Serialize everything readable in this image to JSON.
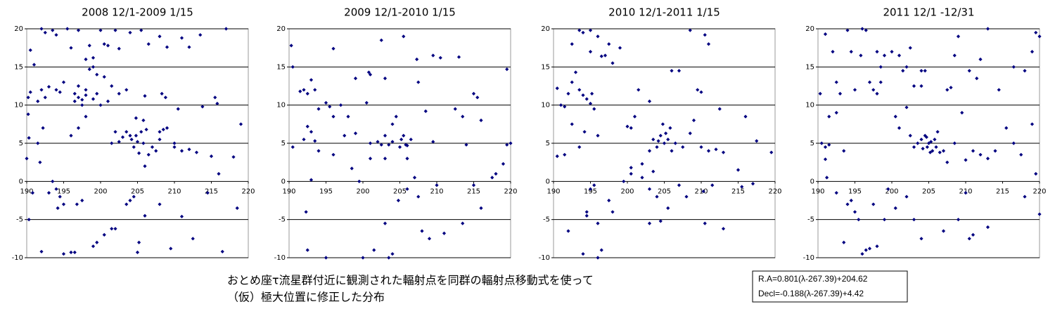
{
  "chart_data": [
    {
      "type": "scatter",
      "title": "2008 12/1-2009 1/15",
      "color": "#000080",
      "xlim": [
        190,
        220
      ],
      "ylim": [
        -10,
        20
      ],
      "xticks": [
        190,
        195,
        200,
        205,
        210,
        215,
        220
      ],
      "yticks": [
        -10,
        -5,
        0,
        5,
        10,
        15,
        20
      ],
      "grid": true,
      "x": [
        190.5,
        191,
        192,
        192.5,
        193.5,
        194,
        195.5,
        196,
        197,
        198,
        198.5,
        199,
        200,
        200.5,
        201,
        202,
        202.5,
        204,
        205.5,
        206.5,
        208,
        209,
        211,
        212,
        213.5,
        217,
        190.2,
        190.5,
        191.5,
        192,
        192.5,
        193,
        194,
        194.5,
        195,
        196.5,
        197,
        197.5,
        198,
        198.5,
        199,
        199.5,
        197,
        198,
        197.5,
        196.5,
        199,
        200,
        201,
        200.5,
        201.5,
        202.5,
        199.5,
        203.5,
        190.2,
        190.3,
        191.5,
        192.2,
        190,
        191.8,
        193.5,
        194,
        194.5,
        196,
        197,
        198,
        195,
        197.5,
        194.2,
        203.5,
        204,
        204.2,
        204.5,
        204.8,
        205,
        205.2,
        205.5,
        205.8,
        206,
        206.2,
        203,
        202.5,
        201.5,
        202,
        206.5,
        207,
        207.5,
        208,
        208.5,
        209,
        208,
        210,
        211,
        212,
        213,
        210.5,
        208.3,
        208.8,
        206,
        205.8,
        204.8,
        210,
        213.8,
        215.5,
        215.8,
        216,
        219,
        218,
        215,
        190.3,
        192,
        195,
        196,
        196.5,
        199,
        199.5,
        200.5,
        201.5,
        202,
        204,
        203.5,
        204.5,
        205,
        205.2,
        206,
        209.5,
        211,
        212.5,
        214.5,
        216.5,
        218.5,
        190.8,
        193,
        196.8,
        208
      ],
      "values": [
        17.2,
        15.3,
        20,
        19.5,
        19.8,
        19.2,
        20,
        17.5,
        19.8,
        16,
        17.8,
        16.2,
        19.8,
        18,
        17.8,
        19.8,
        17.4,
        19.5,
        19.8,
        18,
        19,
        17.6,
        18.8,
        17.6,
        19.2,
        20,
        11,
        11.7,
        10.5,
        12,
        11,
        12.4,
        12,
        11.7,
        13,
        11.5,
        12.5,
        10.7,
        12,
        14.7,
        15,
        11.5,
        11,
        11.3,
        10,
        10.5,
        10.8,
        10,
        10.5,
        13.7,
        12.5,
        11.5,
        14,
        12,
        8.8,
        5.7,
        5,
        7,
        3,
        2.5,
        0,
        -1,
        -2,
        6,
        7,
        8.5,
        -3,
        -2.5,
        -3.5,
        6.5,
        6,
        5.5,
        4.5,
        6,
        5.2,
        3.7,
        6.5,
        5,
        2,
        6.8,
        5.8,
        5.2,
        5,
        6.5,
        3.5,
        4.5,
        4,
        5.5,
        6.8,
        7,
        6.5,
        4.5,
        4,
        4.2,
        3.8,
        9.5,
        11.5,
        11,
        11.2,
        8,
        8.3,
        5,
        9.8,
        11,
        10.2,
        1,
        7.5,
        3.2,
        3.3,
        -5,
        -9.2,
        -9.5,
        -9.3,
        -9.3,
        -8.5,
        -8,
        -7,
        -6.2,
        -6.2,
        -2.5,
        -3,
        -2,
        -9.3,
        -8,
        -4.5,
        -8.8,
        -4.6,
        -7.5,
        -1.5,
        -9.2,
        -3.5,
        -1.5,
        -1.5,
        -3,
        -3
      ]
    },
    {
      "type": "scatter",
      "title": "2009 12/1-2010 1/15",
      "color": "#000080",
      "xlim": [
        190,
        220
      ],
      "ylim": [
        -10,
        20
      ],
      "xticks": [
        190,
        195,
        200,
        205,
        210,
        215,
        220
      ],
      "yticks": [
        -10,
        -5,
        0,
        5,
        10,
        15,
        20
      ],
      "grid": true,
      "x": [
        190.3,
        190.5,
        191.5,
        192,
        192.5,
        193,
        193.5,
        194,
        195,
        195.5,
        196,
        196,
        197,
        197.5,
        198,
        199,
        198.5,
        192.5,
        193,
        193.5,
        194,
        192,
        190.5,
        193,
        192.3,
        192.5,
        195,
        200,
        201.5,
        203,
        204.8,
        203.5,
        203,
        204,
        204.5,
        204,
        205,
        205.2,
        205.5,
        206,
        206.5,
        205.8,
        202.5,
        202,
        201,
        200.5,
        200.8,
        201,
        202.5,
        203,
        205.5,
        207.3,
        207.5,
        209.5,
        210.5,
        213,
        212.5,
        213.5,
        215,
        215.5,
        216,
        219.5,
        220,
        219.5,
        218,
        217.5,
        219,
        216,
        215,
        213.5,
        211,
        208,
        209,
        207.5,
        206,
        204,
        203.5,
        210,
        208.5,
        209.5,
        214,
        206,
        207,
        199.5,
        201,
        203,
        196,
        199
      ],
      "values": [
        17.8,
        15,
        11.8,
        12,
        11.5,
        13.3,
        12,
        9.5,
        10.3,
        9.8,
        8.5,
        17.4,
        10,
        6,
        8.5,
        6.3,
        1.7,
        7.2,
        6.5,
        5.3,
        4,
        5.5,
        4.5,
        0.2,
        -4,
        -9,
        -10,
        -10,
        -9,
        -5.5,
        -2.5,
        4.8,
        6,
        7.5,
        8.5,
        5.2,
        4.5,
        5.5,
        6,
        4.7,
        5.5,
        4.8,
        4.8,
        5.2,
        5,
        10.3,
        14.3,
        14,
        18.5,
        13.5,
        19,
        16,
        13,
        16.5,
        16.2,
        16.3,
        9.5,
        8.5,
        11.5,
        11,
        8,
        14.7,
        5,
        4.8,
        1,
        0.5,
        2.3,
        -3.5,
        -0.5,
        -5.5,
        -6.8,
        -6.5,
        -7.5,
        -2,
        -1,
        -9.5,
        -10,
        -0.5,
        9.2,
        5.2,
        4.8,
        3,
        0.5,
        0,
        3,
        3,
        3.5,
        13.5
      ]
    },
    {
      "type": "scatter",
      "title": "2010 12/1-2011 1/15",
      "color": "#000080",
      "xlim": [
        190,
        220
      ],
      "ylim": [
        -10,
        20
      ],
      "xticks": [
        190,
        195,
        200,
        205,
        210,
        215,
        220
      ],
      "yticks": [
        -10,
        -5,
        0,
        5,
        10,
        15,
        20
      ],
      "grid": true,
      "x": [
        190.5,
        191,
        191.5,
        192,
        192.5,
        193,
        193.5,
        193.5,
        194,
        195,
        195,
        196,
        196.5,
        197,
        198,
        199,
        197.5,
        192.5,
        194,
        194.5,
        195,
        195.5,
        195.2,
        194.2,
        193.5,
        192.5,
        191.5,
        190.5,
        192,
        194.5,
        194.5,
        196,
        195,
        194,
        196.5,
        196,
        195.5,
        197.5,
        198,
        199.5,
        200.5,
        202,
        203.5,
        203,
        203.5,
        204,
        204.5,
        204.8,
        205,
        205.2,
        205.5,
        204.2,
        205.8,
        206,
        206.5,
        207.5,
        208.5,
        209,
        210,
        211,
        212,
        213,
        212.5,
        209.5,
        210,
        207,
        211,
        210.5,
        208.5,
        206,
        203,
        201.5,
        200.5,
        200,
        201,
        200.5,
        202,
        203,
        204,
        204.5,
        203,
        205.5,
        207,
        208,
        210.5,
        211.5,
        213,
        215.5,
        217,
        219.5,
        216,
        217.5,
        215,
        210.3,
        196
      ],
      "values": [
        12.2,
        10,
        9.8,
        11.5,
        13,
        14.3,
        12,
        19.8,
        19.5,
        19.8,
        17,
        19,
        16.4,
        16.5,
        15.5,
        17.5,
        18,
        18,
        11.3,
        10.8,
        10.2,
        9.5,
        11.5,
        6.5,
        4.5,
        7.5,
        3.5,
        3.3,
        -6.5,
        -4,
        -4.5,
        -5.5,
        -1,
        -9.5,
        -9,
        -10,
        -0.5,
        -2.5,
        -4,
        0,
        1,
        2.3,
        1.3,
        4,
        5.5,
        4.5,
        6,
        7.5,
        5,
        6.3,
        5.5,
        5.3,
        7,
        4,
        5,
        4.5,
        6.3,
        8,
        4.5,
        4,
        4.2,
        3.8,
        9.5,
        12,
        11.7,
        14.5,
        18,
        19.2,
        19.8,
        14.5,
        10.5,
        12,
        7,
        7.2,
        8.5,
        1.8,
        0.5,
        -1,
        -2,
        -5.2,
        -5.5,
        -3.5,
        -0.5,
        -2,
        -5.5,
        -0.5,
        -6.2,
        -0.7,
        -0.3,
        3.8,
        8.5,
        5.3,
        1.5,
        -1.3,
        6
      ]
    },
    {
      "type": "scatter",
      "title": "2011 12/1 -12/31",
      "color": "#000080",
      "xlim": [
        190,
        220
      ],
      "ylim": [
        -10,
        20
      ],
      "xticks": [
        190,
        195,
        200,
        205,
        210,
        215,
        220
      ],
      "yticks": [
        -10,
        -5,
        0,
        5,
        10,
        15,
        20
      ],
      "grid": true,
      "x": [
        190.3,
        191,
        190.5,
        191,
        191.5,
        191.2,
        191,
        191.5,
        192.5,
        192,
        192.5,
        193,
        193.5,
        192.5,
        194,
        194.5,
        196,
        196.5,
        195.8,
        195,
        194,
        195,
        195.5,
        194.5,
        196,
        196.5,
        197,
        198,
        193.5,
        197,
        197.5,
        198,
        198.5,
        199,
        198,
        198.5,
        200,
        201,
        201.5,
        202,
        202.5,
        203,
        204,
        204.5,
        204,
        202,
        200.5,
        201,
        202.5,
        203,
        203.5,
        204,
        204.5,
        204.8,
        205,
        205.2,
        205.5,
        205.8,
        206,
        206.5,
        204.2,
        204.7,
        205.3,
        206.2,
        207,
        207.5,
        208.5,
        210,
        211,
        212,
        213,
        214,
        215.5,
        216.5,
        217.5,
        218,
        219,
        219.5,
        220,
        219,
        219.5,
        220,
        218,
        213,
        211,
        210.5,
        209,
        207,
        204,
        203,
        202,
        200.5,
        199.5,
        207.5,
        208,
        208.5,
        210.5,
        212,
        213,
        214.5,
        216.5,
        211.5,
        209.5,
        209,
        210,
        197.5,
        199
      ],
      "values": [
        11.5,
        19.3,
        5,
        4.5,
        4.8,
        0.5,
        2.9,
        8.5,
        9,
        17,
        13,
        11.5,
        4,
        -1.5,
        19.8,
        17,
        20,
        19.8,
        16.5,
        12,
        -3,
        -4,
        -5,
        -2.5,
        -9.5,
        -9,
        -8.8,
        -8.5,
        -8,
        13,
        12,
        11.5,
        13,
        16.5,
        17,
        15,
        17,
        16.5,
        14.5,
        15,
        17.5,
        12.5,
        14.5,
        14.5,
        12.5,
        9.7,
        8.5,
        7,
        6,
        4.5,
        5,
        5.5,
        6,
        4.5,
        5,
        3.8,
        4,
        5.5,
        4.5,
        3.8,
        4.3,
        5.8,
        5.2,
        6.5,
        4,
        2.5,
        5,
        2.8,
        4,
        3.5,
        3,
        4,
        7,
        5,
        3.5,
        14.5,
        17,
        19.5,
        19,
        7.5,
        1,
        -4.3,
        -2,
        -6,
        -7,
        -7.5,
        -5,
        -6.5,
        -7.5,
        -5,
        -2,
        -3.5,
        -1,
        12,
        12.3,
        16.5,
        14.5,
        16,
        20,
        12,
        15,
        13.5,
        9,
        19,
        -1.5,
        -3,
        -5
      ]
    }
  ],
  "caption": [
    "おとめ座τ流星群付近に観測された輻射点を同群の輻射点移動式を使って",
    "（仮）極大位置に修正した分布"
  ],
  "formula": [
    "R.A=0.801(λ-267.39)+204.62",
    "Decl=-0.188(λ-267.39)+4.42"
  ]
}
